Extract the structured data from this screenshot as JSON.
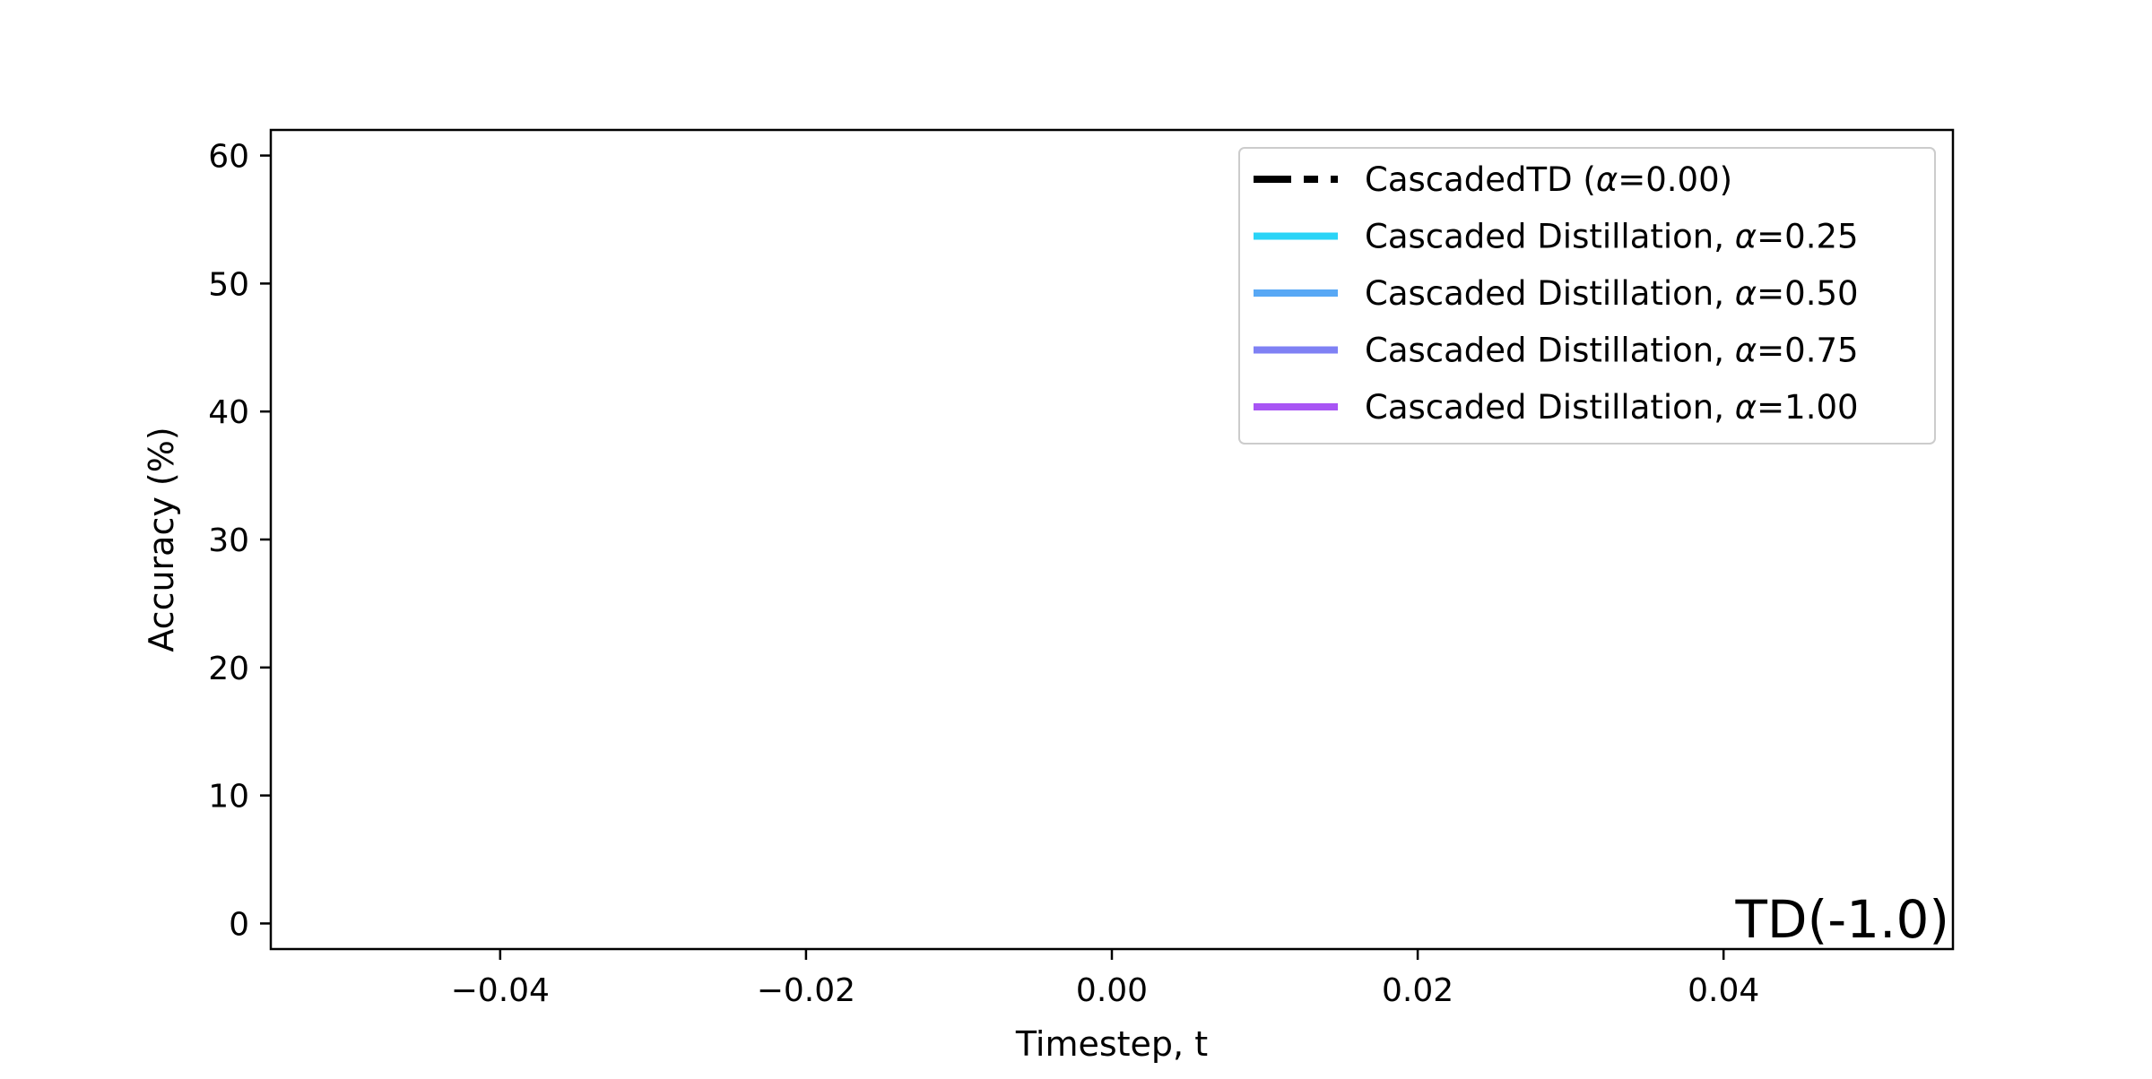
{
  "chart_data": {
    "type": "line",
    "xlabel": "Timestep, t",
    "ylabel": "Accuracy (%)",
    "xlim": [
      -0.055,
      0.055
    ],
    "ylim": [
      -2,
      62
    ],
    "x_ticks": [
      -0.04,
      -0.02,
      0.0,
      0.02,
      0.04
    ],
    "x_tick_labels": [
      "−0.04",
      "−0.02",
      "0.00",
      "0.02",
      "0.04"
    ],
    "y_ticks": [
      0,
      10,
      20,
      30,
      40,
      50,
      60
    ],
    "y_tick_labels": [
      "0",
      "10",
      "20",
      "30",
      "40",
      "50",
      "60"
    ],
    "grid": false,
    "legend_position": "top-right",
    "annotation": "TD(-1.0)",
    "series": [
      {
        "label_prefix": "CascadedTD (",
        "label_alpha": "α",
        "label_suffix": "=0.00)",
        "color": "#000000",
        "style": "dashed",
        "x": [],
        "y": []
      },
      {
        "label_prefix": "Cascaded Distillation, ",
        "label_alpha": "α",
        "label_suffix": "=0.25",
        "color": "#2ad4f7",
        "style": "solid",
        "x": [],
        "y": []
      },
      {
        "label_prefix": "Cascaded Distillation, ",
        "label_alpha": "α",
        "label_suffix": "=0.50",
        "color": "#58a8f5",
        "style": "solid",
        "x": [],
        "y": []
      },
      {
        "label_prefix": "Cascaded Distillation, ",
        "label_alpha": "α",
        "label_suffix": "=0.75",
        "color": "#7f81f4",
        "style": "solid",
        "x": [],
        "y": []
      },
      {
        "label_prefix": "Cascaded Distillation, ",
        "label_alpha": "α",
        "label_suffix": "=1.00",
        "color": "#a855f4",
        "style": "solid",
        "x": [],
        "y": []
      }
    ]
  }
}
